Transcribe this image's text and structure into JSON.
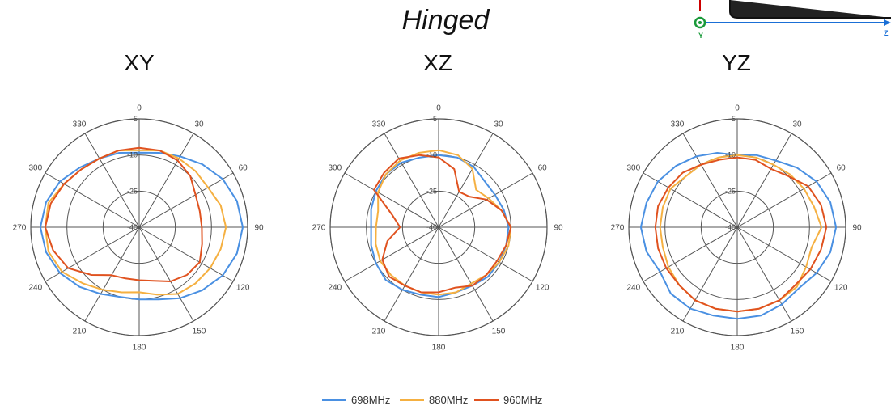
{
  "page": {
    "title": "Hinged"
  },
  "axes_widget": {
    "y_label": "Y",
    "z_label": "Z",
    "colors": {
      "x": "#cc0000",
      "y": "#1a9a3a",
      "z": "#1a6fd6"
    }
  },
  "chart_data": [
    {
      "type": "polar-line",
      "title": "XY",
      "angle_labels": [
        "0",
        "30",
        "60",
        "90",
        "120",
        "150",
        "180",
        "210",
        "240",
        "270",
        "300",
        "330"
      ],
      "radial_ticks": [
        -40,
        -25,
        -10,
        5
      ],
      "radial_labels": [
        "-40",
        "-25",
        "-10",
        "5"
      ],
      "rlim": [
        -40,
        5
      ],
      "angles": [
        0,
        15,
        30,
        45,
        60,
        75,
        90,
        105,
        120,
        135,
        150,
        165,
        180,
        195,
        210,
        225,
        240,
        255,
        270,
        285,
        300,
        315,
        330,
        345
      ],
      "series": [
        {
          "name": "698MHz",
          "color": "#4a90e2",
          "values": [
            -9,
            -8,
            -6,
            -3,
            0,
            2,
            3,
            2,
            0,
            -3,
            -6,
            -9,
            -10,
            -10,
            -8,
            -5,
            -2,
            0,
            1,
            0,
            -2,
            -5,
            -7,
            -8
          ]
        },
        {
          "name": "880MHz",
          "color": "#f5b041",
          "values": [
            -8,
            -7,
            -7,
            -7,
            -7,
            -5,
            -4,
            -5,
            -6,
            -7,
            -8,
            -11,
            -13,
            -12,
            -10,
            -7,
            -3,
            -1,
            -1,
            -1,
            -4,
            -6,
            -7,
            -7
          ]
        },
        {
          "name": "960MHz",
          "color": "#e0521f",
          "values": [
            -7,
            -7,
            -8,
            -10,
            -13,
            -14,
            -14,
            -13,
            -11,
            -12,
            -14,
            -17,
            -18,
            -18,
            -17,
            -12,
            -6,
            -3,
            -1,
            -2,
            -4,
            -6,
            -7,
            -7
          ]
        }
      ]
    },
    {
      "type": "polar-line",
      "title": "XZ",
      "angle_labels": [
        "0",
        "30",
        "60",
        "90",
        "120",
        "150",
        "180",
        "210",
        "240",
        "270",
        "300",
        "330"
      ],
      "radial_ticks": [
        -40,
        -25,
        -10,
        5
      ],
      "radial_labels": [
        "-40",
        "-25",
        "-10",
        "5"
      ],
      "rlim": [
        -40,
        5
      ],
      "angles": [
        0,
        15,
        30,
        45,
        60,
        75,
        90,
        105,
        120,
        135,
        150,
        165,
        180,
        195,
        210,
        225,
        240,
        255,
        270,
        285,
        300,
        315,
        330,
        345
      ],
      "series": [
        {
          "name": "698MHz",
          "color": "#4a90e2",
          "values": [
            -10,
            -10,
            -11,
            -13,
            -13,
            -12,
            -11,
            -11,
            -11,
            -11,
            -12,
            -12,
            -11,
            -11,
            -10,
            -9,
            -10,
            -11,
            -12,
            -11,
            -10,
            -9,
            -9,
            -10
          ]
        },
        {
          "name": "880MHz",
          "color": "#f5b041",
          "values": [
            -8,
            -9,
            -12,
            -18,
            -16,
            -13,
            -10,
            -10,
            -11,
            -12,
            -13,
            -12,
            -12,
            -12,
            -12,
            -12,
            -12,
            -13,
            -14,
            -14,
            -11,
            -9,
            -8,
            -8
          ]
        },
        {
          "name": "960MHz",
          "color": "#e0521f",
          "values": [
            -11,
            -15,
            -23,
            -22,
            -17,
            -13,
            -10,
            -11,
            -12,
            -12,
            -12,
            -14,
            -13,
            -12,
            -12,
            -11,
            -13,
            -18,
            -24,
            -20,
            -9,
            -8,
            -7,
            -9
          ]
        }
      ]
    },
    {
      "type": "polar-line",
      "title": "YZ",
      "angle_labels": [
        "0",
        "30",
        "60",
        "90",
        "120",
        "150",
        "180",
        "210",
        "240",
        "270",
        "300",
        "330"
      ],
      "radial_ticks": [
        -40,
        -25,
        -10,
        5
      ],
      "radial_labels": [
        "-40",
        "-25",
        "-10",
        "5"
      ],
      "rlim": [
        -40,
        5
      ],
      "angles": [
        0,
        15,
        30,
        45,
        60,
        75,
        90,
        105,
        120,
        135,
        150,
        165,
        180,
        195,
        210,
        225,
        240,
        255,
        270,
        285,
        300,
        315,
        330,
        345
      ],
      "series": [
        {
          "name": "698MHz",
          "color": "#4a90e2",
          "values": [
            -10,
            -9,
            -8,
            -5,
            -2,
            0,
            1,
            0,
            -2,
            -4,
            -3,
            -2,
            -2,
            -2,
            -1,
            -1,
            -3,
            -1,
            0,
            -1,
            -2,
            -4,
            -6,
            -8
          ]
        },
        {
          "name": "880MHz",
          "color": "#f5b041",
          "values": [
            -10,
            -10,
            -10,
            -9,
            -8,
            -7,
            -5,
            -8,
            -7,
            -5,
            -5,
            -5,
            -5,
            -5,
            -5,
            -6,
            -7,
            -8,
            -8,
            -8,
            -8,
            -10,
            -10,
            -10
          ]
        },
        {
          "name": "960MHz",
          "color": "#e0521f",
          "values": [
            -11,
            -11,
            -12,
            -10,
            -6,
            -4,
            -3,
            -4,
            -5,
            -6,
            -5,
            -5,
            -5,
            -5,
            -5,
            -6,
            -6,
            -6,
            -6,
            -6,
            -7,
            -8,
            -10,
            -11
          ]
        }
      ]
    }
  ],
  "legend": {
    "items": [
      "698MHz",
      "880MHz",
      "960MHz"
    ]
  }
}
